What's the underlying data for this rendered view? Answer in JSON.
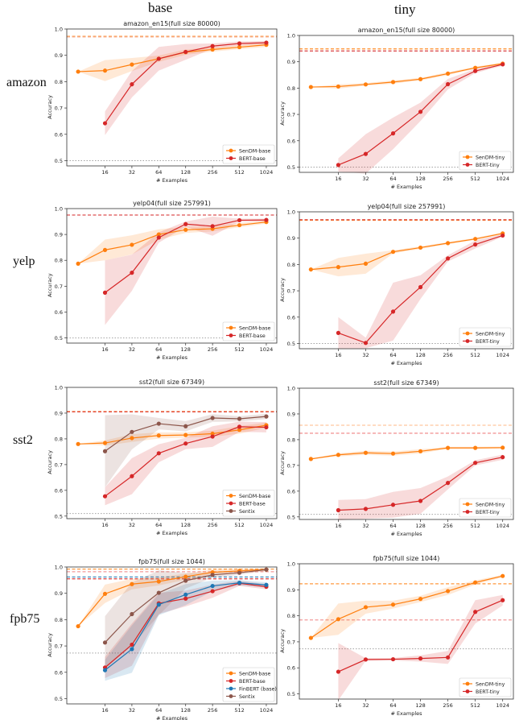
{
  "column_headers": [
    "base",
    "tiny"
  ],
  "row_labels": [
    "amazon",
    "yelp",
    "sst2",
    "fpb75"
  ],
  "colors": {
    "SenDM": "#ff7f0e",
    "BERT": "#d62728",
    "FinBERT": "#1f77b4",
    "Sentix": "#8c564b",
    "reference": "#999999"
  },
  "chart_data": [
    {
      "type": "line",
      "title": "amazon_en15(full size 80000)",
      "xlabel": "# Examples",
      "ylabel": "Accuracy",
      "x_tick_labels": [
        "",
        "16",
        "32",
        "64",
        "128",
        "256",
        "512",
        "1024"
      ],
      "ylim": [
        0.48,
        1.0
      ],
      "y_ticks": [
        "0.5",
        "0.6",
        "0.7",
        "0.8",
        "0.9",
        "1.0"
      ],
      "legend": "bottom-right",
      "grid": false,
      "hlines": [
        {
          "y": 0.972,
          "color": "#ff7f0e",
          "style": "dashed"
        },
        {
          "y": 0.97,
          "color": "#f4a582",
          "style": "dashed"
        },
        {
          "y": 0.5,
          "color": "#999999",
          "style": "dotted"
        }
      ],
      "series": [
        {
          "name": "SenDM-base",
          "color": "#ff7f0e",
          "values": [
            0.838,
            0.842,
            0.865,
            0.887,
            0.912,
            0.922,
            0.931,
            0.94
          ],
          "band": [
            0,
            0.04,
            0.025,
            0.012,
            0.01,
            0.008,
            0.008,
            0.008
          ]
        },
        {
          "name": "BERT-base",
          "color": "#d62728",
          "values": [
            null,
            0.642,
            0.79,
            0.887,
            0.913,
            0.935,
            0.945,
            0.948
          ],
          "band": [
            null,
            0.045,
            0.05,
            0.045,
            0.03,
            0.01,
            0.008,
            0.006
          ]
        }
      ]
    },
    {
      "type": "line",
      "title": "amazon_en15(full size 80000)",
      "xlabel": "# Examples",
      "ylabel": "Accuracy",
      "x_tick_labels": [
        "",
        "16",
        "32",
        "64",
        "128",
        "256",
        "512",
        "1024"
      ],
      "ylim": [
        0.48,
        1.0
      ],
      "y_ticks": [
        "0.5",
        "0.6",
        "0.7",
        "0.8",
        "0.9",
        "1.0"
      ],
      "legend": "bottom-right",
      "grid": false,
      "hlines": [
        {
          "y": 0.949,
          "color": "#ff7f0e",
          "style": "dashed"
        },
        {
          "y": 0.941,
          "color": "#d62728",
          "style": "dashed"
        },
        {
          "y": 0.5,
          "color": "#999999",
          "style": "dotted"
        }
      ],
      "series": [
        {
          "name": "SenDM-tiny",
          "color": "#ff7f0e",
          "values": [
            0.804,
            0.806,
            0.814,
            0.823,
            0.834,
            0.855,
            0.877,
            0.893
          ],
          "band": [
            0,
            0.008,
            0.005,
            0.006,
            0.005,
            0.006,
            0.004,
            0.004
          ]
        },
        {
          "name": "BERT-tiny",
          "color": "#d62728",
          "values": [
            null,
            0.508,
            0.55,
            0.628,
            0.71,
            0.815,
            0.865,
            0.89
          ],
          "band": [
            null,
            0.025,
            0.075,
            0.06,
            0.035,
            0.02,
            0.008,
            0.005
          ]
        }
      ]
    },
    {
      "type": "line",
      "title": "yelp04(full size 257991)",
      "xlabel": "# Examples",
      "ylabel": "Accuracy",
      "x_tick_labels": [
        "",
        "16",
        "32",
        "64",
        "128",
        "256",
        "512",
        "1024"
      ],
      "ylim": [
        0.48,
        1.0
      ],
      "y_ticks": [
        "0.5",
        "0.6",
        "0.7",
        "0.8",
        "0.9",
        "1.0"
      ],
      "legend": "bottom-right",
      "grid": false,
      "hlines": [
        {
          "y": 0.975,
          "color": "#d62728",
          "style": "dashed"
        },
        {
          "y": 0.5,
          "color": "#999999",
          "style": "dotted"
        }
      ],
      "series": [
        {
          "name": "SenDM-base",
          "color": "#ff7f0e",
          "values": [
            0.787,
            0.84,
            0.86,
            0.9,
            0.918,
            0.922,
            0.936,
            0.948
          ],
          "band": [
            0,
            0.04,
            0.037,
            0.02,
            0.012,
            0.01,
            0.008,
            0.006
          ]
        },
        {
          "name": "BERT-base",
          "color": "#d62728",
          "values": [
            null,
            0.675,
            0.752,
            0.888,
            0.94,
            0.932,
            0.955,
            0.956
          ],
          "band": [
            null,
            0.125,
            0.07,
            0.02,
            0.01,
            0.037,
            0.006,
            0.005
          ]
        }
      ]
    },
    {
      "type": "line",
      "title": "yelp04(full size 257991)",
      "xlabel": "# Examples",
      "ylabel": "Accuracy",
      "x_tick_labels": [
        "",
        "16",
        "32",
        "64",
        "128",
        "256",
        "512",
        "1024"
      ],
      "ylim": [
        0.48,
        1.0
      ],
      "y_ticks": [
        "0.5",
        "0.6",
        "0.7",
        "0.8",
        "0.9",
        "1.0"
      ],
      "legend": "bottom-right",
      "grid": false,
      "hlines": [
        {
          "y": 0.968,
          "color": "#ff7f0e",
          "style": "dashed"
        },
        {
          "y": 0.97,
          "color": "#d62728",
          "style": "dashed"
        },
        {
          "y": 0.5,
          "color": "#999999",
          "style": "dotted"
        }
      ],
      "series": [
        {
          "name": "SenDM-tiny",
          "color": "#ff7f0e",
          "values": [
            0.781,
            0.79,
            0.803,
            0.848,
            0.864,
            0.881,
            0.897,
            0.918
          ],
          "band": [
            0,
            0.035,
            0.038,
            0.006,
            0.005,
            0.004,
            0.004,
            0.004
          ]
        },
        {
          "name": "BERT-tiny",
          "color": "#d62728",
          "values": [
            null,
            0.54,
            0.502,
            0.621,
            0.714,
            0.823,
            0.876,
            0.91
          ],
          "band": [
            null,
            0.06,
            0.02,
            0.11,
            0.045,
            0.012,
            0.015,
            0.005
          ]
        }
      ]
    },
    {
      "type": "line",
      "title": "sst2(full size 67349)",
      "xlabel": "# Examples",
      "ylabel": "Accuracy",
      "x_tick_labels": [
        "",
        "16",
        "32",
        "64",
        "128",
        "256",
        "512",
        "1024"
      ],
      "ylim": [
        0.49,
        1.0
      ],
      "y_ticks": [
        "0.5",
        "0.6",
        "0.7",
        "0.8",
        "0.9",
        "1.0"
      ],
      "legend": "bottom-right",
      "grid": false,
      "hlines": [
        {
          "y": 0.906,
          "color": "#ff7f0e",
          "style": "dashed"
        },
        {
          "y": 0.905,
          "color": "#d62728",
          "style": "dashed"
        },
        {
          "y": 0.51,
          "color": "#999999",
          "style": "dotted"
        }
      ],
      "series": [
        {
          "name": "SenDM-base",
          "color": "#ff7f0e",
          "values": [
            0.78,
            0.784,
            0.803,
            0.813,
            0.815,
            0.82,
            0.835,
            0.853
          ],
          "band": [
            0,
            0.01,
            0.015,
            0.012,
            0.01,
            0.012,
            0.015,
            0.01
          ]
        },
        {
          "name": "BERT-base",
          "color": "#d62728",
          "values": [
            null,
            0.577,
            0.655,
            0.744,
            0.782,
            0.809,
            0.847,
            0.845
          ],
          "band": [
            null,
            0.035,
            0.07,
            0.035,
            0.022,
            0.04,
            0.02,
            0.02
          ]
        },
        {
          "name": "Sentix",
          "color": "#8c564b",
          "values": [
            null,
            0.752,
            0.827,
            0.859,
            0.849,
            0.881,
            0.878,
            0.887
          ],
          "band": [
            null,
            0.14,
            0.068,
            0.022,
            0.02,
            0.015,
            0.01,
            0.01
          ]
        }
      ]
    },
    {
      "type": "line",
      "title": "sst2(full size 67349)",
      "xlabel": "# Examples",
      "ylabel": "Accuracy",
      "x_tick_labels": [
        "",
        "16",
        "32",
        "64",
        "128",
        "256",
        "512",
        "1024"
      ],
      "ylim": [
        0.49,
        1.0
      ],
      "y_ticks": [
        "0.5",
        "0.6",
        "0.7",
        "0.8",
        "0.9",
        "1.0"
      ],
      "legend": "bottom-right",
      "grid": false,
      "hlines": [
        {
          "y": 0.856,
          "color": "#ffbb88",
          "style": "dashed"
        },
        {
          "y": 0.825,
          "color": "#f08080",
          "style": "dashed"
        },
        {
          "y": 0.51,
          "color": "#999999",
          "style": "dotted"
        }
      ],
      "series": [
        {
          "name": "SenDM-tiny",
          "color": "#ff7f0e",
          "values": [
            0.725,
            0.741,
            0.749,
            0.746,
            0.755,
            0.768,
            0.768,
            0.769
          ],
          "band": [
            0,
            0.006,
            0.008,
            0.008,
            0.008,
            0.004,
            0.004,
            0.004
          ]
        },
        {
          "name": "BERT-tiny",
          "color": "#d62728",
          "values": [
            null,
            0.526,
            0.531,
            0.547,
            0.562,
            0.632,
            0.71,
            0.732
          ],
          "band": [
            null,
            0.04,
            0.038,
            0.05,
            0.05,
            0.025,
            0.01,
            0.01
          ]
        }
      ]
    },
    {
      "type": "line",
      "title": "fpb75(full size 1044)",
      "xlabel": "# Examples",
      "ylabel": "Accuracy",
      "x_tick_labels": [
        "",
        "16",
        "32",
        "64",
        "128",
        "256",
        "512",
        "1024"
      ],
      "ylim": [
        0.48,
        1.0
      ],
      "y_ticks": [
        "0.5",
        "0.6",
        "0.7",
        "0.8",
        "0.9",
        "1.0"
      ],
      "legend": "bottom-right",
      "grid": false,
      "hlines": [
        {
          "y": 0.992,
          "color": "#ff7f0e",
          "style": "dashed"
        },
        {
          "y": 0.982,
          "color": "#f08080",
          "style": "dashed"
        },
        {
          "y": 0.962,
          "color": "#1f77b4",
          "style": "dashed"
        },
        {
          "y": 0.955,
          "color": "#d62728",
          "style": "dashed"
        },
        {
          "y": 0.673,
          "color": "#999999",
          "style": "dotted"
        }
      ],
      "series": [
        {
          "name": "SenDM-base",
          "color": "#ff7f0e",
          "values": [
            0.775,
            0.898,
            0.935,
            0.945,
            0.963,
            0.98,
            0.985,
            0.99
          ],
          "band": [
            0,
            0.035,
            0.02,
            0.015,
            0.012,
            0.01,
            0.008,
            0.005
          ]
        },
        {
          "name": "BERT-base",
          "color": "#d62728",
          "values": [
            null,
            0.618,
            0.705,
            0.862,
            0.88,
            0.908,
            0.938,
            0.925
          ],
          "band": [
            null,
            0.04,
            0.08,
            0.04,
            0.03,
            0.025,
            0.01,
            0.01
          ]
        },
        {
          "name": "FinBERT (base)",
          "color": "#1f77b4",
          "values": [
            null,
            0.608,
            0.688,
            0.857,
            0.895,
            0.928,
            0.94,
            0.932
          ],
          "band": [
            null,
            0.04,
            0.09,
            0.04,
            0.04,
            0.02,
            0.01,
            0.01
          ]
        },
        {
          "name": "Sentix",
          "color": "#8c564b",
          "values": [
            null,
            0.713,
            0.821,
            0.902,
            0.948,
            0.97,
            0.978,
            0.99
          ],
          "band": [
            null,
            0.1,
            0.12,
            0.085,
            0.03,
            0.01,
            0.008,
            0.005
          ]
        }
      ]
    },
    {
      "type": "line",
      "title": "fpb75(full size 1044)",
      "xlabel": "# Examples",
      "ylabel": "Accuracy",
      "x_tick_labels": [
        "",
        "16",
        "32",
        "64",
        "128",
        "256",
        "512",
        "1024"
      ],
      "ylim": [
        0.48,
        1.0
      ],
      "y_ticks": [
        "0.5",
        "0.6",
        "0.7",
        "0.8",
        "0.9",
        "1.0"
      ],
      "legend": "bottom-right",
      "grid": false,
      "hlines": [
        {
          "y": 0.923,
          "color": "#ff7f0e",
          "style": "dashed"
        },
        {
          "y": 0.784,
          "color": "#f08080",
          "style": "dashed"
        },
        {
          "y": 0.673,
          "color": "#999999",
          "style": "dotted"
        }
      ],
      "series": [
        {
          "name": "SenDM-tiny",
          "color": "#ff7f0e",
          "values": [
            0.715,
            0.787,
            0.833,
            0.843,
            0.865,
            0.895,
            0.928,
            0.953
          ],
          "band": [
            0,
            0.06,
            0.025,
            0.015,
            0.012,
            0.015,
            0.008,
            0.005
          ]
        },
        {
          "name": "BERT-tiny",
          "color": "#d62728",
          "values": [
            null,
            0.585,
            0.632,
            0.633,
            0.636,
            0.64,
            0.815,
            0.86
          ],
          "band": [
            null,
            0.11,
            0.005,
            0.005,
            0.012,
            0.025,
            0.045,
            0.02
          ]
        }
      ]
    }
  ]
}
